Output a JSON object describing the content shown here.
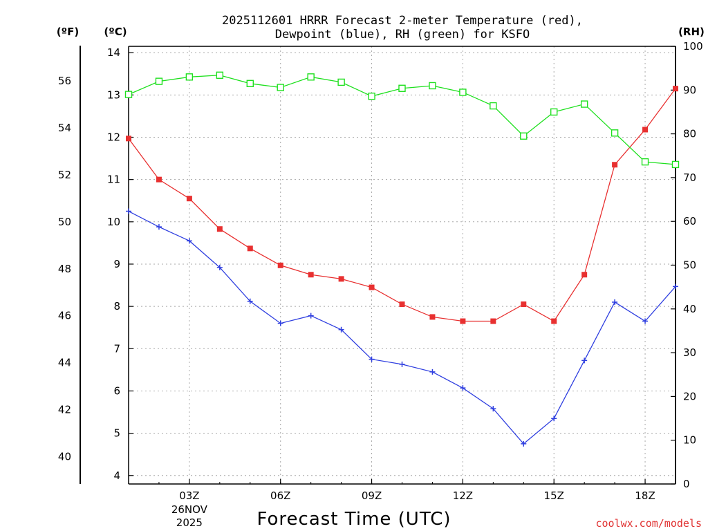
{
  "chart_data": {
    "type": "line",
    "title_line1": "2025112601 HRRR Forecast 2-meter Temperature (red),",
    "title_line2": "Dewpoint (blue), RH (green) for KSFO",
    "units": {
      "fahrenheit": "(ºF)",
      "celsius": "(ºC)",
      "rh": "(RH)"
    },
    "xlabel": "Forecast Time (UTC)",
    "credit": "coolwx.com/models",
    "x": [
      1,
      2,
      3,
      4,
      5,
      6,
      7,
      8,
      9,
      10,
      11,
      12,
      13,
      14,
      15,
      16,
      17,
      18,
      19
    ],
    "xlim": [
      1,
      19
    ],
    "x_ticks": [
      {
        "x": 3,
        "label": "03Z"
      },
      {
        "x": 6,
        "label": "06Z"
      },
      {
        "x": 9,
        "label": "09Z"
      },
      {
        "x": 12,
        "label": "12Z"
      },
      {
        "x": 15,
        "label": "15Z"
      },
      {
        "x": 18,
        "label": "18Z"
      }
    ],
    "date_label": {
      "x": 3,
      "day": "26NOV",
      "year": "2025"
    },
    "celsius_axis": {
      "ylim": [
        3.8,
        14.15
      ],
      "ticks": [
        4,
        5,
        6,
        7,
        8,
        9,
        10,
        11,
        12,
        13,
        14
      ]
    },
    "fahrenheit_axis": {
      "ticks": [
        40,
        42,
        44,
        46,
        48,
        50,
        52,
        54,
        56
      ]
    },
    "rh_axis": {
      "ylim": [
        0,
        100
      ],
      "ticks": [
        0,
        10,
        20,
        30,
        40,
        50,
        60,
        70,
        80,
        90,
        100
      ]
    },
    "colors": {
      "temperature": "#e83030",
      "dewpoint": "#2f3fe0",
      "rh": "#1ee01e",
      "axis": "#000000"
    },
    "series": [
      {
        "name": "Temperature",
        "unit": "C",
        "marker": "filled-square",
        "values": [
          11.97,
          11.0,
          10.55,
          9.83,
          9.37,
          8.97,
          8.75,
          8.65,
          8.45,
          8.05,
          7.75,
          7.65,
          7.65,
          8.05,
          7.65,
          8.75,
          11.35,
          12.18,
          13.15
        ]
      },
      {
        "name": "Dewpoint",
        "unit": "C",
        "marker": "plus",
        "values": [
          10.25,
          9.88,
          9.55,
          8.92,
          8.12,
          7.6,
          7.78,
          7.45,
          6.75,
          6.63,
          6.45,
          6.07,
          5.58,
          4.75,
          5.35,
          6.72,
          8.1,
          7.65,
          8.47
        ]
      },
      {
        "name": "RH",
        "unit": "%",
        "marker": "open-square",
        "values": [
          89,
          92,
          93,
          93.4,
          91.5,
          90.6,
          93,
          91.8,
          88.6,
          90.4,
          91,
          89.5,
          86.4,
          79.5,
          85,
          86.8,
          80.2,
          73.6,
          73
        ]
      }
    ]
  }
}
